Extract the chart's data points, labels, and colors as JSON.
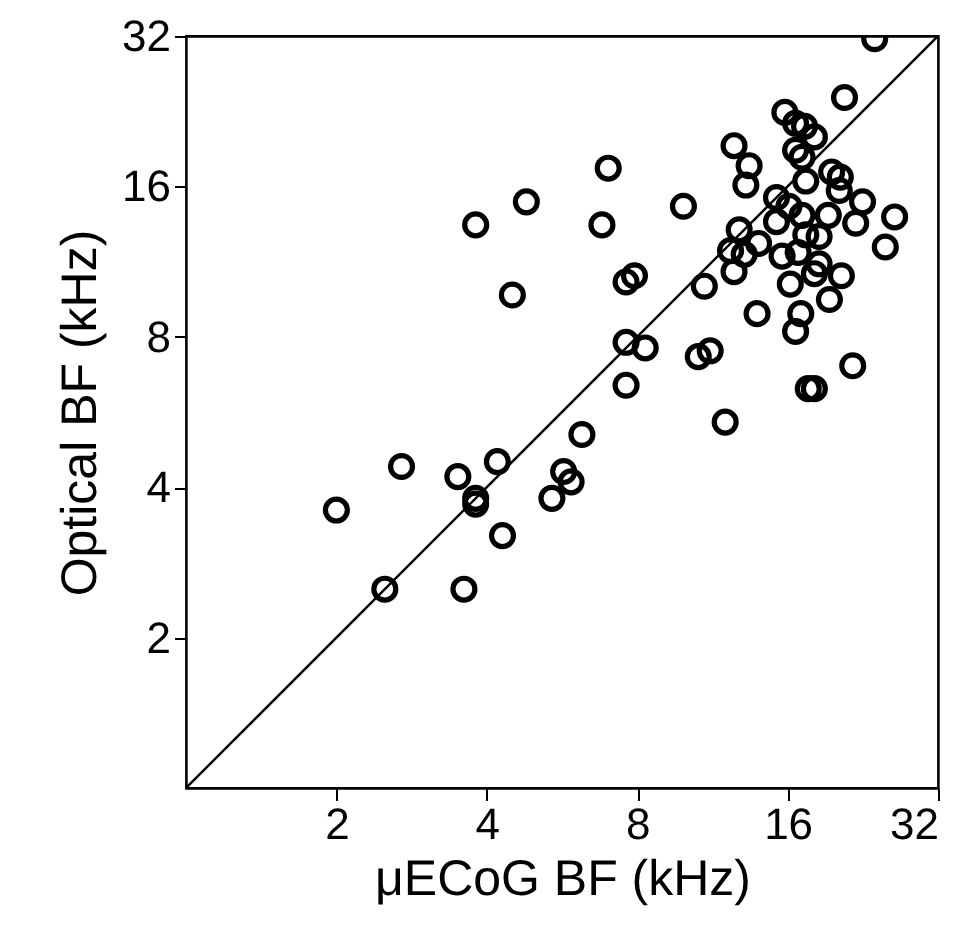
{
  "chart_data": {
    "type": "scatter",
    "xlabel": "μECoG BF (kHz)",
    "ylabel": "Optical BF (kHz)",
    "log": "xy",
    "xlim": [
      1,
      32
    ],
    "ylim": [
      1,
      32
    ],
    "xticks": [
      2,
      4,
      8,
      16,
      32
    ],
    "yticks": [
      2,
      4,
      8,
      16,
      32
    ],
    "grid": false,
    "marker": "circle",
    "series": [
      {
        "color": "#000000",
        "x": [
          23.9,
          20.8,
          15.8,
          16.6,
          17.3,
          18.1,
          12.5,
          16.6,
          17.1,
          13.4,
          7.0,
          13.2,
          17.4,
          19.6,
          20.4,
          20.3,
          22.6,
          26.2,
          4.8,
          3.8,
          6.8,
          9.9,
          15.2,
          16.1,
          15.2,
          17.1,
          19.3,
          21.9,
          12.8,
          17.4,
          18.5,
          14.0,
          12.3,
          13.1,
          15.6,
          16.8,
          18.5,
          25.1,
          12.5,
          18.1,
          20.5,
          16.2,
          7.6,
          7.9,
          10.9,
          4.5,
          19.4,
          13.9,
          17.0,
          16.6,
          7.6,
          8.3,
          10.6,
          11.2,
          21.6,
          7.6,
          17.6,
          18.1,
          12.0,
          6.2,
          5.7,
          5.9,
          5.4,
          4.2,
          3.5,
          3.8,
          3.8,
          4.3,
          2.7,
          2.0,
          2.5,
          3.6
        ],
        "values": [
          31.6,
          24.1,
          22.5,
          21.4,
          21.1,
          20.1,
          19.3,
          18.9,
          18.3,
          17.6,
          17.4,
          16.1,
          16.4,
          17.1,
          16.7,
          15.7,
          14.9,
          13.9,
          14.9,
          13.4,
          13.4,
          14.6,
          15.2,
          14.6,
          13.6,
          14.0,
          14.0,
          13.5,
          13.1,
          12.8,
          12.7,
          12.3,
          11.9,
          11.7,
          11.6,
          11.8,
          11.2,
          12.1,
          10.8,
          10.7,
          10.6,
          10.2,
          10.3,
          10.6,
          10.1,
          9.7,
          9.5,
          8.9,
          8.9,
          8.2,
          7.8,
          7.6,
          7.3,
          7.5,
          7.0,
          6.4,
          6.3,
          6.3,
          5.4,
          5.1,
          4.3,
          4.1,
          3.8,
          4.5,
          4.2,
          3.8,
          3.7,
          3.2,
          4.4,
          3.6,
          2.5,
          2.5
        ]
      },
      {
        "type": "line",
        "color": "#000000",
        "marker": "none",
        "line_style": "solid",
        "x": [
          1,
          32
        ],
        "values": [
          1,
          32
        ]
      }
    ]
  }
}
